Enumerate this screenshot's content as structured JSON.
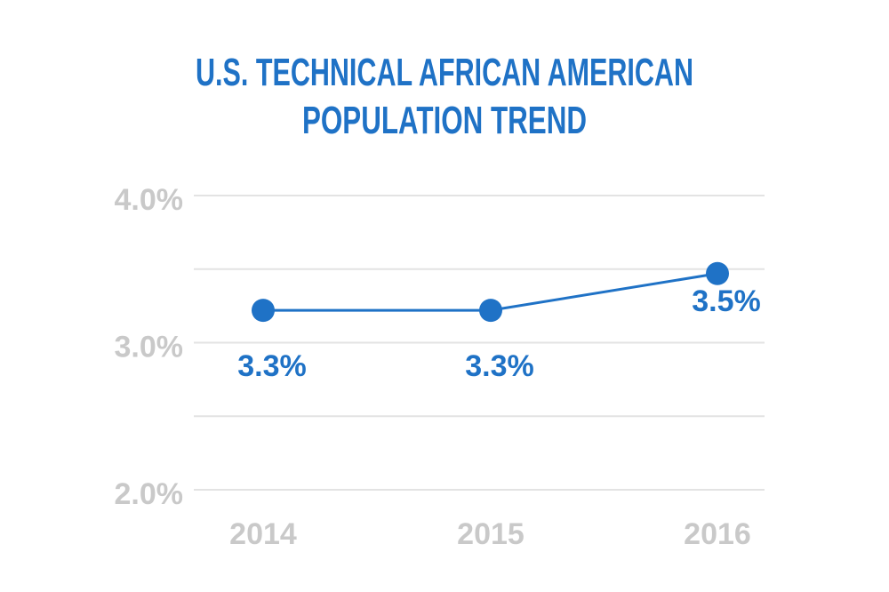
{
  "chart_data": {
    "type": "line",
    "title_lines": [
      "U.S. TECHNICAL AFRICAN AMERICAN",
      "POPULATION TREND"
    ],
    "categories": [
      "2014",
      "2015",
      "2016"
    ],
    "values": [
      3.25,
      3.25,
      3.5
    ],
    "data_labels": [
      "3.3%",
      "3.3%",
      "3.5%"
    ],
    "y_ticks": [
      {
        "value": 4.0,
        "label": "4.0%"
      },
      {
        "value": 3.0,
        "label": "3.0%"
      },
      {
        "value": 2.0,
        "label": "2.0%"
      }
    ],
    "gridlines": [
      4.0,
      3.5,
      3.0,
      2.5,
      2.0
    ],
    "ylim": [
      2.0,
      4.0
    ],
    "grid": true,
    "colors": {
      "series": "#1f72c6",
      "title": "#1f72c6",
      "axis_text": "#c9c9c9",
      "grid": "#e3e3e3"
    }
  }
}
